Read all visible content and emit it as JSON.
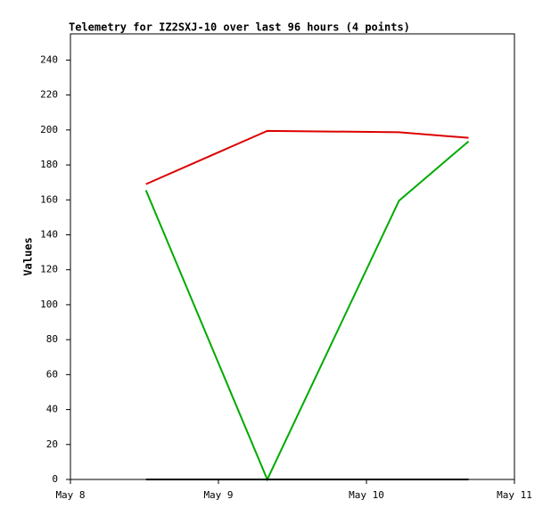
{
  "chart_data": {
    "type": "line",
    "title": "Telemetry for IZ2SXJ-10 over last 96 hours (4 points)",
    "ylabel": "Values",
    "x": [
      0.51,
      1.33,
      2.22,
      2.69
    ],
    "series": [
      {
        "color": "#dd0000",
        "values": [
          169,
          199.5,
          198.7,
          195.5
        ]
      },
      {
        "color": "#00aa00",
        "values": [
          165.5,
          0,
          159.5,
          193.5
        ]
      },
      {
        "color": "#000000",
        "values": [
          0,
          0,
          0,
          0
        ]
      }
    ],
    "xlim": [
      0,
      3
    ],
    "xticks": [
      {
        "value": 0,
        "label": "May 8"
      },
      {
        "value": 1,
        "label": "May 9"
      },
      {
        "value": 2,
        "label": "May 10"
      },
      {
        "value": 3,
        "label": "May 11"
      }
    ],
    "ylim": [
      0,
      255
    ],
    "yticks": [
      0,
      20,
      40,
      60,
      80,
      100,
      120,
      140,
      160,
      180,
      200,
      220,
      240
    ]
  }
}
